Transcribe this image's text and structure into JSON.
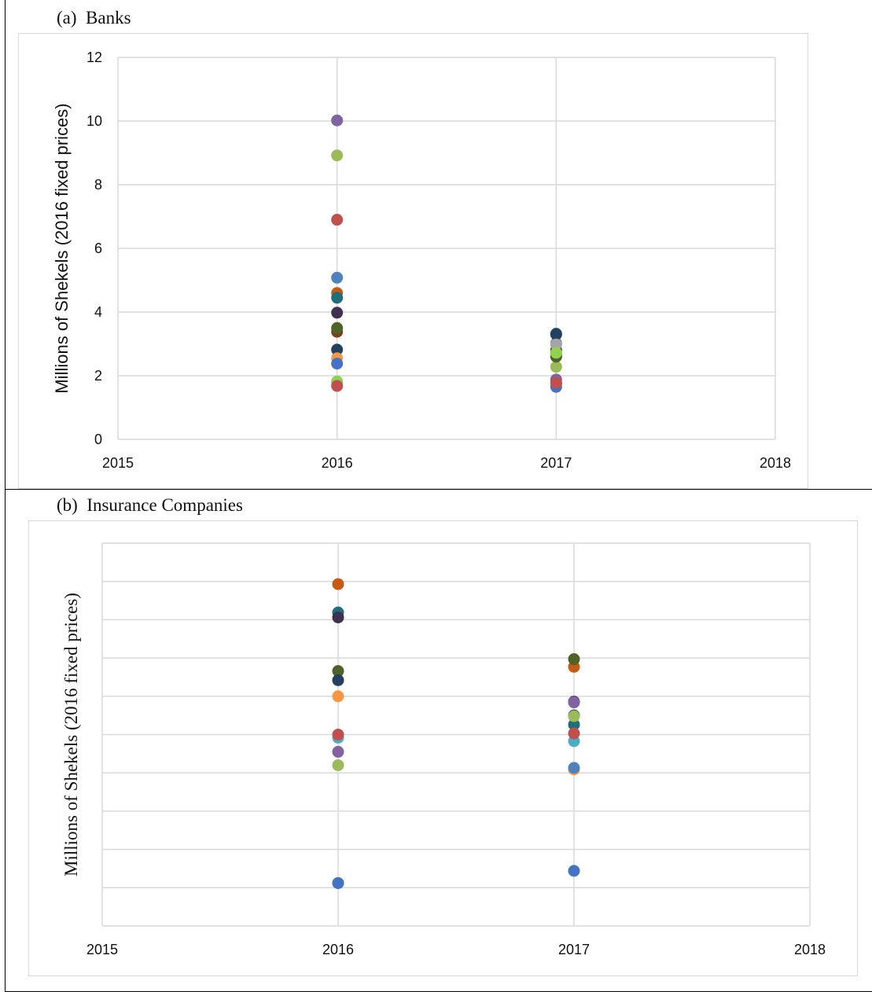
{
  "panels": [
    {
      "title": "(a)  Banks"
    },
    {
      "title": "(b)  Insurance Companies"
    }
  ],
  "chart_data": [
    {
      "type": "scatter",
      "title": "(a)  Banks",
      "xlabel": "",
      "ylabel": "Millions of Shekels (2016 fixed prices)",
      "xlim": [
        2015,
        2018
      ],
      "ylim": [
        0,
        12
      ],
      "xticks": [
        "2015",
        "2016",
        "2017",
        "2018"
      ],
      "yticks": [
        "0",
        "2",
        "4",
        "6",
        "8",
        "10",
        "12"
      ],
      "grid": true,
      "series": [
        {
          "color": "#8064a2",
          "x": [
            2016,
            2017
          ],
          "y": [
            10.02,
            1.88
          ]
        },
        {
          "color": "#9bbb59",
          "x": [
            2016,
            2017
          ],
          "y": [
            8.92,
            2.28
          ]
        },
        {
          "color": "#c0504d",
          "x": [
            2016,
            2017
          ],
          "y": [
            6.9,
            1.75
          ]
        },
        {
          "color": "#4f81bd",
          "x": [
            2016,
            2017
          ],
          "y": [
            5.08,
            3.02
          ]
        },
        {
          "color": "#c55a11",
          "x": [
            2016,
            2017
          ],
          "y": [
            4.6,
            2.7
          ]
        },
        {
          "color": "#1f6e7a",
          "x": [
            2016,
            2017
          ],
          "y": [
            4.45,
            3.32
          ]
        },
        {
          "color": "#403152",
          "x": [
            2016,
            2017
          ],
          "y": [
            3.98,
            2.8
          ]
        },
        {
          "color": "#7f3f1a",
          "x": [
            2016,
            2017
          ],
          "y": [
            3.38,
            2.62
          ]
        },
        {
          "color": "#4f6228",
          "x": [
            2016,
            2017
          ],
          "y": [
            3.5,
            2.6
          ]
        },
        {
          "color": "#243f60",
          "x": [
            2016,
            2017
          ],
          "y": [
            2.82,
            3.3
          ]
        },
        {
          "color": "#f79646",
          "x": [
            2016,
            2017
          ],
          "y": [
            2.55,
            1.72
          ]
        },
        {
          "color": "#4472c4",
          "x": [
            2016,
            2017
          ],
          "y": [
            2.38,
            1.65
          ]
        },
        {
          "color": "#a5a5a5",
          "x": [
            2016,
            2017
          ],
          "y": [
            1.8,
            2.98
          ]
        },
        {
          "color": "#92d050",
          "x": [
            2016,
            2017
          ],
          "y": [
            1.82,
            2.72
          ]
        },
        {
          "color": "#c0504d",
          "x": [
            2016,
            2017
          ],
          "y": [
            1.68,
            1.78
          ]
        }
      ]
    },
    {
      "type": "scatter",
      "title": "(b)  Insurance Companies",
      "xlabel": "",
      "ylabel": "Millions of Shekels (2016 fixed prices)",
      "xlim": [
        2015,
        2018
      ],
      "ylim": [
        0,
        10
      ],
      "xticks": [
        "2015",
        "2016",
        "2017",
        "2018"
      ],
      "yticks": [],
      "grid": true,
      "series": [
        {
          "color": "#c55a11",
          "x": [
            2016,
            2017
          ],
          "y": [
            8.93,
            6.77
          ]
        },
        {
          "color": "#1f6e7a",
          "x": [
            2016,
            2017
          ],
          "y": [
            8.19,
            5.26
          ]
        },
        {
          "color": "#403152",
          "x": [
            2016,
            2017
          ],
          "y": [
            8.06,
            5.86
          ]
        },
        {
          "color": "#4f6228",
          "x": [
            2016,
            2017
          ],
          "y": [
            6.66,
            6.97
          ]
        },
        {
          "color": "#243f60",
          "x": [
            2016,
            2017
          ],
          "y": [
            6.42,
            5.5
          ]
        },
        {
          "color": "#f79646",
          "x": [
            2016,
            2017
          ],
          "y": [
            6.0,
            4.09
          ]
        },
        {
          "color": "#4bacc6",
          "x": [
            2016,
            2017
          ],
          "y": [
            4.92,
            4.83
          ]
        },
        {
          "color": "#8064a2",
          "x": [
            2016,
            2017
          ],
          "y": [
            4.55,
            5.84
          ]
        },
        {
          "color": "#9bbb59",
          "x": [
            2016,
            2017
          ],
          "y": [
            4.2,
            5.48
          ]
        },
        {
          "color": "#c0504d",
          "x": [
            2016,
            2017
          ],
          "y": [
            5.0,
            5.03
          ]
        },
        {
          "color": "#4f81bd",
          "x": [
            2016,
            2017
          ],
          "y": [
            1.12,
            4.13
          ]
        },
        {
          "color": "#4472c4",
          "x": [
            2016,
            2017
          ],
          "y": [
            1.12,
            1.44
          ]
        }
      ]
    }
  ]
}
